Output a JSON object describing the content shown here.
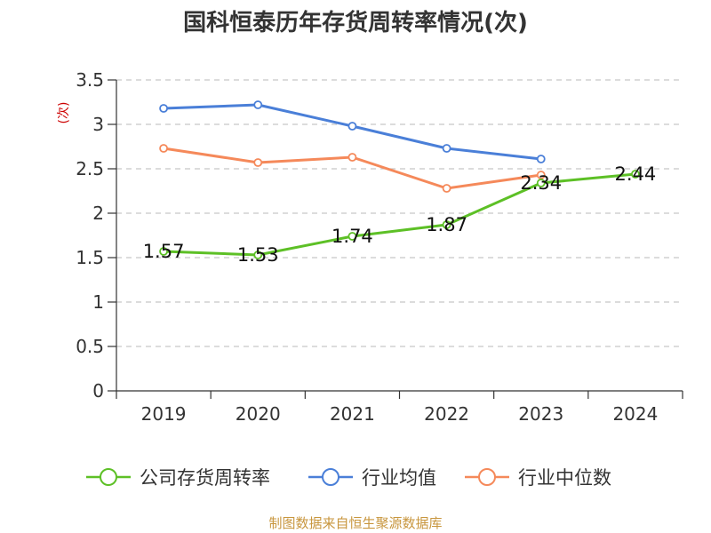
{
  "chart_data": {
    "type": "line",
    "title": "国科恒泰历年存货周转率情况(次)",
    "ylabel": "(次)",
    "categories": [
      "2019",
      "2020",
      "2021",
      "2022",
      "2023",
      "2024"
    ],
    "ylim": [
      0,
      3.5
    ],
    "yticks": [
      "0",
      "0.5",
      "1",
      "1.5",
      "2",
      "2.5",
      "3",
      "3.5"
    ],
    "grid": true,
    "legend_position": "bottom",
    "series": [
      {
        "name": "公司存货周转率",
        "color": "#5dc026",
        "values": [
          1.57,
          1.53,
          1.74,
          1.87,
          2.34,
          2.44
        ],
        "labels": [
          "1.57",
          "1.53",
          "1.74",
          "1.87",
          "2.34",
          "2.44"
        ]
      },
      {
        "name": "行业均值",
        "color": "#4a7fd8",
        "values": [
          3.18,
          3.22,
          2.98,
          2.73,
          2.61,
          null
        ]
      },
      {
        "name": "行业中位数",
        "color": "#f5895a",
        "values": [
          2.73,
          2.57,
          2.63,
          2.28,
          2.43,
          null
        ]
      }
    ],
    "source": "制图数据来自恒生聚源数据库"
  }
}
